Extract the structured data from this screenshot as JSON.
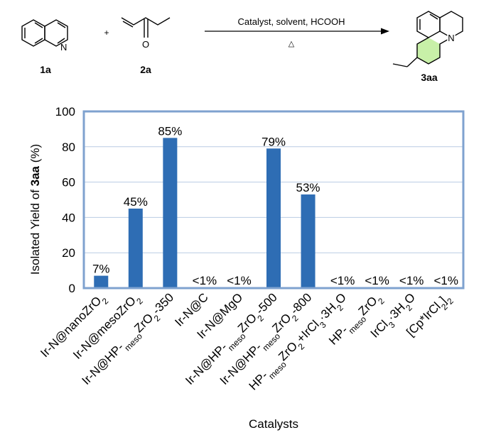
{
  "scheme": {
    "reactant1_label": "1a",
    "reactant2_label": "2a",
    "product_label": "3aa",
    "plus": "+",
    "conditions": "Catalyst, solvent, HCOOH",
    "heat": "△",
    "atom_N": "N",
    "atom_O": "O",
    "colors": {
      "ring_fill": "#c8f0a8"
    }
  },
  "chart_data": {
    "type": "bar",
    "title": "",
    "xlabel": "Catalysts",
    "ylabel_prefix": "Isolated Yield of ",
    "ylabel_bold": "3aa",
    "ylabel_suffix": " (%)",
    "ylim": [
      0,
      100
    ],
    "yticks": [
      0,
      20,
      40,
      60,
      80,
      100
    ],
    "grid": true,
    "categories": [
      "Ir-N@nanoZrO2",
      "Ir-N@mesoZrO2",
      "Ir-N@HP-mesoZrO2-350",
      "Ir-N@C",
      "Ir-N@MgO",
      "Ir-N@HP-mesoZrO2-500",
      "Ir-N@HP-mesoZrO2-800",
      "HP-mesoZrO2+IrCl3·3H2O",
      "HP-mesoZrO2",
      "IrCl3·3H2O",
      "[Cp*IrCl2]2"
    ],
    "values": [
      7,
      45,
      85,
      0.5,
      0.5,
      79,
      53,
      0.5,
      0.5,
      0.5,
      0.5
    ],
    "data_labels": [
      "7%",
      "45%",
      "85%",
      "<1%",
      "<1%",
      "79%",
      "53%",
      "<1%",
      "<1%",
      "<1%",
      "<1%"
    ],
    "colors": {
      "bar": "#2e6db4",
      "frame": "#7fa2cf",
      "grid": "#b9cbe3"
    }
  }
}
